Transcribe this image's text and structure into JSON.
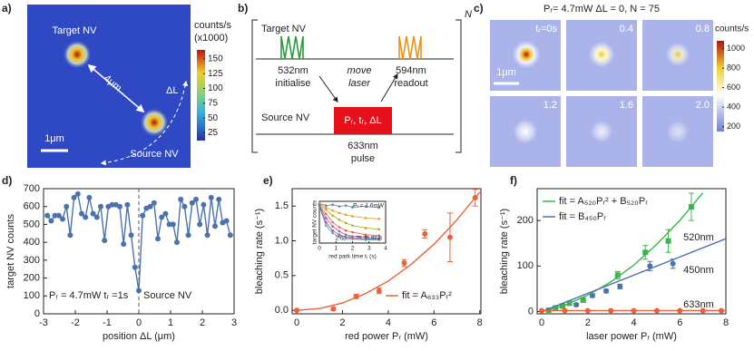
{
  "panel_a": {
    "label": "a)",
    "target": "Target NV",
    "source": "Source NV",
    "distance": "4μm",
    "shift": "ΔL",
    "scale_bar": "1μm",
    "colorbar": {
      "title": "counts/s",
      "subtitle": "(x1000)",
      "lim": [
        12,
        165
      ],
      "ticks": [
        25,
        50,
        75,
        100,
        125,
        150
      ]
    }
  },
  "panel_b": {
    "label": "b)",
    "repeat": "N",
    "target": "Target NV",
    "source": "Source NV",
    "green_pulse": [
      "532nm",
      "initialise"
    ],
    "move": [
      "move",
      "laser"
    ],
    "orange_pulse": [
      "594nm",
      "readout"
    ],
    "red_pulse": "Pᵣ, tᵣ, ΔL",
    "red_caption": [
      "633nm",
      "pulse"
    ]
  },
  "panel_c": {
    "label": "c)",
    "title": "Pᵣ= 4.7mW ΔL = 0, N = 75",
    "tiles": [
      "tᵣ=0s",
      "0.4",
      "0.8",
      "1.2",
      "1.6",
      "2.0"
    ],
    "scale_bar": "1μm",
    "colorbar": {
      "title": "counts/s",
      "lim": [
        150,
        1080
      ],
      "ticks": [
        200,
        400,
        600,
        800,
        1000
      ]
    }
  },
  "chart_data": [
    {
      "type": "line",
      "label": "d)",
      "xlabel": "position ΔL (μm)",
      "ylabel": "target NV counts",
      "xlim": [
        -3,
        3
      ],
      "xticks": [
        -3,
        -2,
        -1,
        0,
        1,
        2,
        3
      ],
      "ylim": [
        0,
        700
      ],
      "yticks": [
        0,
        100,
        200,
        300,
        400,
        500,
        600,
        700
      ],
      "vline": 0,
      "annotations": [
        "Pᵣ = 4.7mW tᵣ =1s",
        "Source NV"
      ],
      "series": [
        {
          "color": "#4a72b0",
          "mode": "lines+markers",
          "x": [
            -2.88,
            -2.76,
            -2.64,
            -2.52,
            -2.4,
            -2.28,
            -2.16,
            -2.04,
            -1.92,
            -1.8,
            -1.68,
            -1.56,
            -1.44,
            -1.32,
            -1.2,
            -1.08,
            -0.96,
            -0.84,
            -0.72,
            -0.6,
            -0.48,
            -0.36,
            -0.24,
            -0.12,
            0,
            0.12,
            0.24,
            0.36,
            0.48,
            0.6,
            0.72,
            0.84,
            0.96,
            1.08,
            1.2,
            1.32,
            1.44,
            1.56,
            1.68,
            1.8,
            1.92,
            2.04,
            2.16,
            2.28,
            2.4,
            2.52,
            2.64,
            2.76,
            2.88
          ],
          "values": [
            550,
            520,
            550,
            550,
            530,
            600,
            440,
            650,
            670,
            560,
            540,
            650,
            560,
            540,
            600,
            410,
            600,
            610,
            610,
            600,
            390,
            610,
            440,
            260,
            130,
            550,
            590,
            600,
            620,
            420,
            540,
            560,
            500,
            500,
            400,
            640,
            600,
            440,
            620,
            640,
            500,
            610,
            440,
            650,
            490,
            640,
            510,
            520,
            440
          ]
        }
      ]
    },
    {
      "type": "scatter",
      "label": "e)",
      "xlabel": "red power Pᵣ (mW)",
      "ylabel": "bleaching rate (s⁻¹)",
      "xlim": [
        -0.2,
        8.05
      ],
      "xticks": [
        0,
        2,
        4,
        6,
        8
      ],
      "ylim": [
        -0.05,
        1.75
      ],
      "yticks": [
        {
          "value": 0,
          "label": "0.0"
        },
        0.5,
        {
          "value": 1,
          "label": "1.0"
        },
        1.5
      ],
      "legend": "lower right",
      "series": [
        {
          "color": "#e8623a",
          "mode": "markers",
          "x": [
            0,
            1.6,
            2.6,
            3.6,
            4.7,
            5.6,
            6.7,
            7.8
          ],
          "values": [
            0,
            0.02,
            0.2,
            0.28,
            0.68,
            1.1,
            1.05,
            1.62
          ],
          "errors": [
            0.01,
            0.02,
            0.03,
            0.04,
            0.05,
            0.06,
            0.35,
            0.12
          ]
        },
        {
          "name": "fit = A₆₃₃Pᵣ²",
          "color": "#e8623a",
          "mode": "lines",
          "x": [
            0,
            1,
            2,
            3,
            4,
            5,
            6,
            7,
            8
          ],
          "values": [
            0,
            0.026,
            0.105,
            0.24,
            0.42,
            0.66,
            0.95,
            1.3,
            1.7
          ]
        }
      ]
    },
    {
      "type": "line",
      "xlabel": "red park time tᵣ (s)",
      "ylabel": "target NV counts",
      "xlim": [
        0,
        4
      ],
      "xticks": [
        0,
        1,
        2,
        3,
        4
      ],
      "ylim": [
        0,
        1
      ],
      "legend": "inside",
      "x": [
        0,
        0.4,
        0.8,
        1.2,
        1.6,
        2.0,
        2.8,
        3.6
      ],
      "series": [
        {
          "name": "Pᵣ = 1.6mW",
          "color": "#5b7fb5",
          "mode": "lines+markers",
          "values": [
            0.95,
            0.9,
            0.92,
            0.88,
            0.9,
            0.86,
            0.88,
            0.85
          ]
        },
        {
          "name": "2.6",
          "color": "#e8a020",
          "mode": "lines+markers",
          "values": [
            0.95,
            0.85,
            0.78,
            0.72,
            0.68,
            0.64,
            0.6,
            0.58
          ]
        },
        {
          "name": "3.7",
          "color": "#b0b020",
          "mode": "lines+markers",
          "values": [
            0.93,
            0.8,
            0.66,
            0.56,
            0.48,
            0.42,
            0.36,
            0.33
          ]
        },
        {
          "name": "4.7",
          "color": "#e8623a",
          "mode": "lines+markers",
          "values": [
            0.92,
            0.7,
            0.5,
            0.38,
            0.3,
            0.26,
            0.2,
            0.18
          ]
        },
        {
          "name": "5.7",
          "color": "#8a5fb0",
          "mode": "lines+markers",
          "values": [
            0.9,
            0.6,
            0.4,
            0.28,
            0.2,
            0.16,
            0.14,
            0.12
          ]
        },
        {
          "name": "6.9",
          "color": "#c0407a",
          "mode": "lines+markers",
          "values": [
            0.9,
            0.5,
            0.3,
            0.2,
            0.14,
            0.12,
            0.1,
            0.1
          ]
        },
        {
          "name": "7.8",
          "color": "#4aa0c0",
          "mode": "lines+markers",
          "values": [
            0.88,
            0.42,
            0.24,
            0.15,
            0.12,
            0.1,
            0.08,
            0.08
          ]
        }
      ]
    },
    {
      "type": "scatter",
      "label": "f)",
      "xlabel": "laser power Pᵣ (mW)",
      "ylabel": "bleaching rate (s⁻¹)",
      "xlim": [
        -0.2,
        8
      ],
      "xticks": [
        0,
        2,
        4,
        6,
        8
      ],
      "ylim": [
        -5,
        270
      ],
      "yticks": [
        0,
        100,
        200
      ],
      "legend": "upper left",
      "series": [
        {
          "name": "520nm",
          "color": "#3bb54a",
          "mode": "markers",
          "marker": "square",
          "x": [
            0.3,
            0.6,
            0.9,
            1.2,
            1.8,
            3.3,
            4.5,
            5.5,
            6.5
          ],
          "values": [
            3,
            8,
            12,
            18,
            25,
            80,
            130,
            155,
            230
          ],
          "errors": [
            2,
            2,
            3,
            3,
            4,
            8,
            15,
            25,
            30
          ]
        },
        {
          "name": "450nm",
          "color": "#4a72b0",
          "mode": "markers",
          "x": [
            1.5,
            2.2,
            2.8,
            3.4,
            4.7,
            5.7
          ],
          "values": [
            15,
            35,
            45,
            55,
            100,
            105
          ],
          "errors": [
            3,
            4,
            4,
            5,
            10,
            10
          ]
        },
        {
          "name": "633nm",
          "color": "#e8623a",
          "mode": "markers",
          "x": [
            0,
            1,
            2,
            3,
            4,
            5,
            6,
            7,
            7.8
          ],
          "values": [
            2,
            2,
            2,
            2,
            2,
            2,
            2,
            2,
            2
          ]
        },
        {
          "name": "fit = A₅₂₀Pᵣ² + B₅₂₀Pᵣ",
          "color": "#3bb54a",
          "mode": "lines",
          "x": [
            0,
            1,
            2,
            3,
            4,
            5,
            6,
            7
          ],
          "values": [
            0,
            14,
            36,
            65,
            102,
            148,
            200,
            261
          ]
        },
        {
          "name": "fit = B₄₅₀Pᵣ",
          "color": "#4a72b0",
          "mode": "lines",
          "x": [
            0,
            8
          ],
          "values": [
            0,
            160
          ]
        },
        {
          "color": "#e8623a",
          "mode": "lines",
          "x": [
            0,
            8
          ],
          "values": [
            2,
            2
          ]
        }
      ]
    }
  ]
}
